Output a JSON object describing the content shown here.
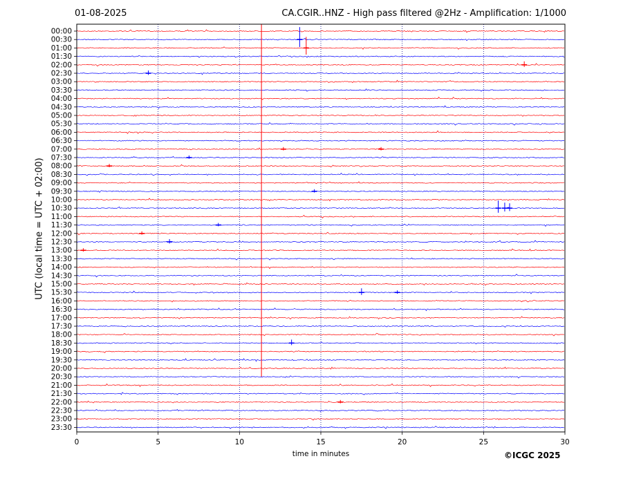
{
  "header": {
    "date": "01-08-2025",
    "title": "CA.CGIR..HNZ - High pass filtered @2Hz - Amplification: 1/1000"
  },
  "footer": {
    "copyright": "©ICGC 2025"
  },
  "colors": {
    "trace_odd": "#ff0000",
    "trace_even": "#0000ff",
    "grid": "#00008b",
    "axis": "#000000"
  },
  "chart_data": {
    "type": "line",
    "title": "CA.CGIR..HNZ - High pass filtered @2Hz - Amplification: 1/1000",
    "subtitle": "01-08-2025",
    "xlabel": "time in minutes",
    "ylabel": "UTC (local time = UTC + 02:00)",
    "xlim": [
      0,
      30
    ],
    "xticks": [
      0,
      5,
      10,
      15,
      20,
      25,
      30
    ],
    "grid": "vertical dotted at 5, 10, 15, 20, 25",
    "rows": [
      "00:00",
      "00:30",
      "01:00",
      "01:30",
      "02:00",
      "02:30",
      "03:00",
      "03:30",
      "04:00",
      "04:30",
      "05:00",
      "05:30",
      "06:00",
      "06:30",
      "07:00",
      "07:30",
      "08:00",
      "08:30",
      "09:00",
      "09:30",
      "10:00",
      "10:30",
      "11:00",
      "11:30",
      "12:00",
      "12:30",
      "13:00",
      "13:30",
      "14:00",
      "14:30",
      "15:00",
      "15:30",
      "16:00",
      "16:30",
      "17:00",
      "17:30",
      "18:00",
      "18:30",
      "19:00",
      "19:30",
      "20:00",
      "20:30",
      "21:00",
      "21:30",
      "22:00",
      "22:30",
      "23:00",
      "23:30"
    ],
    "row_colors": "alternating red (even rows) / blue (odd rows)",
    "events": [
      {
        "row": "00:30",
        "minute": 13.7,
        "amplitude": 18
      },
      {
        "row": "01:00",
        "minute": 14.1,
        "amplitude": 16
      },
      {
        "row": "02:00",
        "minute": 27.5,
        "amplitude": 5
      },
      {
        "row": "02:30",
        "minute": 4.4,
        "amplitude": 4
      },
      {
        "row": "07:00",
        "minute": 12.7,
        "amplitude": 3
      },
      {
        "row": "07:00",
        "minute": 18.7,
        "amplitude": 3
      },
      {
        "row": "07:30",
        "minute": 6.9,
        "amplitude": 3
      },
      {
        "row": "08:00",
        "minute": 2.0,
        "amplitude": 3
      },
      {
        "row": "09:30",
        "minute": 14.6,
        "amplitude": 3
      },
      {
        "row": "10:30",
        "minute": 25.9,
        "amplitude": 11
      },
      {
        "row": "10:30",
        "minute": 26.3,
        "amplitude": 8
      },
      {
        "row": "10:30",
        "minute": 26.6,
        "amplitude": 7
      },
      {
        "row": "11:30",
        "minute": 8.7,
        "amplitude": 3
      },
      {
        "row": "12:00",
        "minute": 4.0,
        "amplitude": 3
      },
      {
        "row": "12:30",
        "minute": 5.7,
        "amplitude": 4
      },
      {
        "row": "13:00",
        "minute": 0.4,
        "amplitude": 3
      },
      {
        "row": "15:30",
        "minute": 17.5,
        "amplitude": 6
      },
      {
        "row": "15:30",
        "minute": 19.7,
        "amplitude": 3
      },
      {
        "row": "18:30",
        "minute": 13.2,
        "amplitude": 5
      },
      {
        "row": "22:00",
        "minute": 16.2,
        "amplitude": 3
      }
    ],
    "continuous_spike": {
      "minute": 11.35,
      "from_row": "00:00",
      "to_row": "20:00"
    }
  }
}
